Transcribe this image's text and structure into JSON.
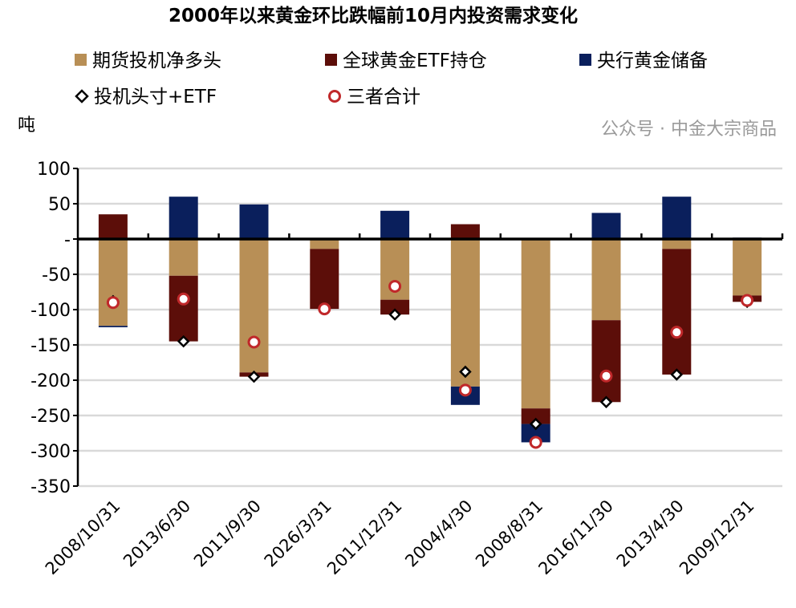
{
  "chart_data": {
    "type": "bar",
    "stacked": true,
    "title": "2000年以来黄金环比跌幅前10月内投资需求变化",
    "ylabel": "吨",
    "ylim": [
      -350,
      100
    ],
    "yticks": [
      100,
      50,
      0,
      -50,
      -100,
      -150,
      -200,
      -250,
      -300,
      -350
    ],
    "ytick_labels": [
      "100",
      "50",
      "-",
      "-50",
      "-100",
      "-150",
      "-200",
      "-250",
      "-300",
      "-350"
    ],
    "grid": true,
    "legend_position": "top",
    "categories": [
      "2008/10/31",
      "2013/6/30",
      "2011/9/30",
      "2026/3/31",
      "2011/12/31",
      "2004/4/30",
      "2008/8/31",
      "2016/11/30",
      "2013/4/30",
      "2009/12/31"
    ],
    "series": [
      {
        "name": "期货投机净多头",
        "kind": "bar",
        "color": "#b88f56",
        "values": [
          -123,
          -52,
          -189,
          -14,
          -86,
          -209,
          -240,
          -115,
          -14,
          -80
        ]
      },
      {
        "name": "全球黄金ETF持仓",
        "kind": "bar",
        "color": "#5c0e09",
        "values": [
          35,
          -93,
          -6,
          -85,
          -21,
          21,
          -22,
          -116,
          -178,
          -9
        ]
      },
      {
        "name": "央行黄金储备",
        "kind": "bar",
        "color": "#0a1f5c",
        "values": [
          -2,
          60,
          49,
          0,
          40,
          -26,
          -26,
          37,
          60,
          2
        ]
      },
      {
        "name": "投机头寸+ETF",
        "kind": "marker-diamond",
        "color": "#000000",
        "values": [
          -88,
          -145,
          -195,
          -99,
          -107,
          -188,
          -262,
          -231,
          -192,
          -89
        ]
      },
      {
        "name": "三者合计",
        "kind": "marker-circle",
        "color": "#c0282a",
        "values": [
          -90,
          -85,
          -146,
          -99,
          -67,
          -214,
          -288,
          -194,
          -132,
          -87
        ]
      }
    ]
  },
  "watermark": "公众号 · 中金大宗商品"
}
